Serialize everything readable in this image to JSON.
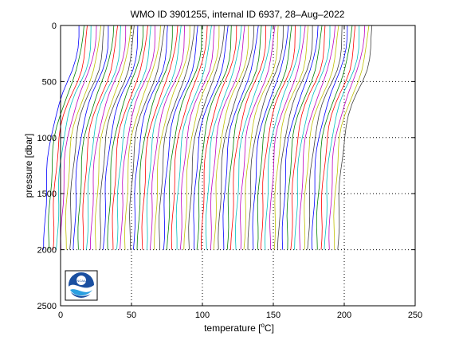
{
  "chart_data": {
    "type": "line",
    "title": "WMO ID 3901255, internal ID 6937, 28–Aug–2022",
    "xlabel": "temperature [",
    "xlabel_unit": "o",
    "xlabel_end": "C]",
    "ylabel": "pressure [dbar]",
    "xlim": [
      0,
      250
    ],
    "ylim": [
      0,
      2500
    ],
    "y_reversed": true,
    "xticks": [
      0,
      50,
      100,
      150,
      200,
      250
    ],
    "yticks": [
      0,
      500,
      1000,
      1500,
      2000,
      2500
    ],
    "grid": "dotted",
    "profile_count": 70,
    "profile_offset_step": 3,
    "profile_max_pressure": 2000,
    "colors": [
      "#0000ff",
      "#008000",
      "#ff0000",
      "#00bfbf",
      "#bf00bf",
      "#bfbf00",
      "#404040"
    ],
    "logo": "NOAA"
  }
}
